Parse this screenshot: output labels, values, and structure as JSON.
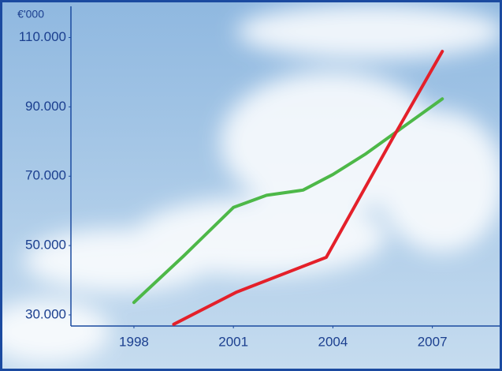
{
  "chart_data": {
    "type": "line",
    "y_unit": "€'000",
    "xlim": [
      1996.1,
      2009.1
    ],
    "ylim": [
      26800,
      119000
    ],
    "xticks": [
      1998,
      2001,
      2004,
      2007
    ],
    "yticks": [
      {
        "value": 30000,
        "label": "30.000"
      },
      {
        "value": 50000,
        "label": "50.000"
      },
      {
        "value": 70000,
        "label": "70.000"
      },
      {
        "value": 90000,
        "label": "90.000"
      },
      {
        "value": 110000,
        "label": "110.000"
      }
    ],
    "series": [
      {
        "color": "#4db848",
        "x": [
          1998,
          1999.5,
          2001,
          2002,
          2003.1,
          2004,
          2005,
          2005.8,
          2007.3
        ],
        "values": [
          33600,
          47000,
          61000,
          64500,
          66000,
          70500,
          76500,
          82000,
          92300
        ]
      },
      {
        "color": "#e4202a",
        "x": [
          1999.2,
          2001.1,
          2003.8,
          2005.8,
          2007.3
        ],
        "values": [
          27300,
          36600,
          46600,
          80900,
          106000
        ]
      }
    ]
  }
}
